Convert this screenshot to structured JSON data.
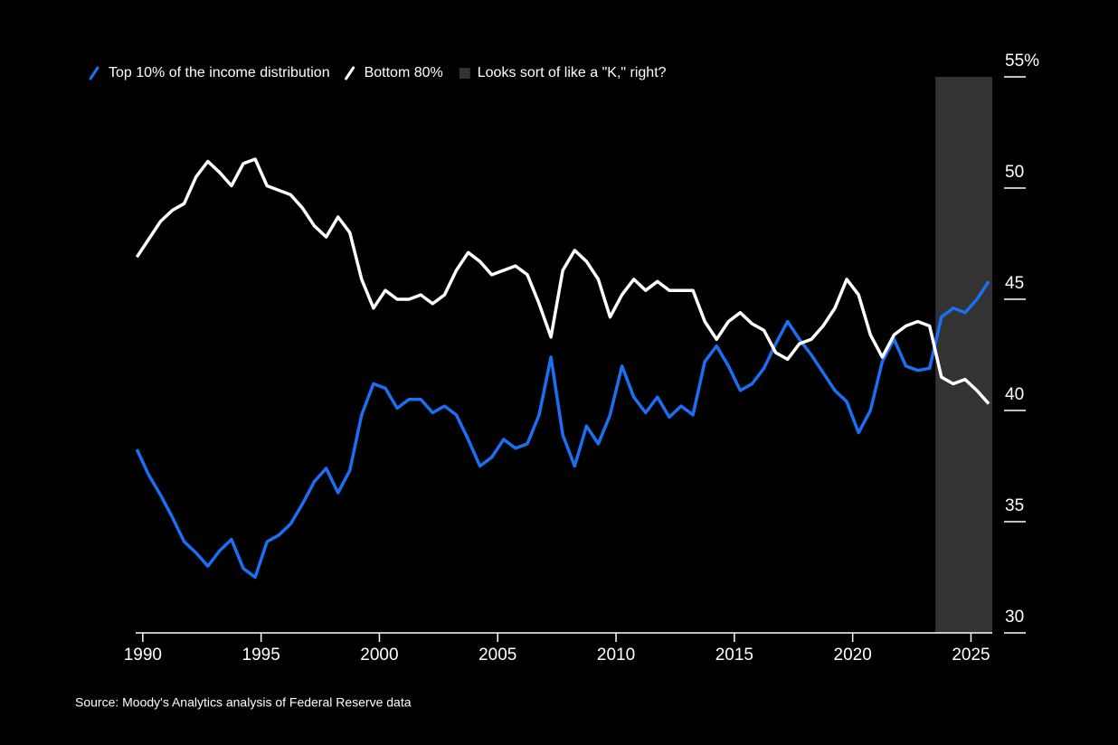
{
  "chart_data": {
    "type": "line",
    "source": "Source: Moody's Analytics analysis of Federal Reserve data",
    "x": [
      1989.75,
      1990.25,
      1990.75,
      1991.25,
      1991.75,
      1992.25,
      1992.75,
      1993.25,
      1993.75,
      1994.25,
      1994.75,
      1995.25,
      1995.75,
      1996.25,
      1996.75,
      1997.25,
      1997.75,
      1998.25,
      1998.75,
      1999.25,
      1999.75,
      2000.25,
      2000.75,
      2001.25,
      2001.75,
      2002.25,
      2002.75,
      2003.25,
      2003.75,
      2004.25,
      2004.75,
      2005.25,
      2005.75,
      2006.25,
      2006.75,
      2007.25,
      2007.75,
      2008.25,
      2008.75,
      2009.25,
      2009.75,
      2010.25,
      2010.75,
      2011.25,
      2011.75,
      2012.25,
      2012.75,
      2013.25,
      2013.75,
      2014.25,
      2014.75,
      2015.25,
      2015.75,
      2016.25,
      2016.75,
      2017.25,
      2017.75,
      2018.25,
      2018.75,
      2019.25,
      2019.75,
      2020.25,
      2020.75,
      2021.25,
      2021.75,
      2022.25,
      2022.75,
      2023.25,
      2023.75,
      2024.25,
      2024.75,
      2025.25,
      2025.75
    ],
    "series": [
      {
        "name": "Top 10% of the income distribution",
        "color": "#1a6ff2",
        "values": [
          38.25,
          37.1,
          36.2,
          35.2,
          34.1,
          33.6,
          33.0,
          33.7,
          34.2,
          32.9,
          32.5,
          34.1,
          34.4,
          34.9,
          35.8,
          36.8,
          37.4,
          36.3,
          37.3,
          39.8,
          41.2,
          41.0,
          40.1,
          40.5,
          40.5,
          39.9,
          40.2,
          39.8,
          38.7,
          37.5,
          37.9,
          38.7,
          38.3,
          38.5,
          39.8,
          42.4,
          38.9,
          37.5,
          39.3,
          38.5,
          39.8,
          42.0,
          40.6,
          39.9,
          40.6,
          39.7,
          40.2,
          39.8,
          42.2,
          42.9,
          42.0,
          40.9,
          41.2,
          41.9,
          43.0,
          44.0,
          43.2,
          42.5,
          41.7,
          40.9,
          40.4,
          39.0,
          40.0,
          42.2,
          43.2,
          42.0,
          41.8,
          41.9,
          44.2,
          44.6,
          44.4,
          45.0,
          45.8
        ]
      },
      {
        "name": "Bottom 80%",
        "color": "#ffffff",
        "values": [
          46.9,
          47.7,
          48.5,
          49.0,
          49.3,
          50.5,
          51.2,
          50.7,
          50.1,
          51.1,
          51.3,
          50.1,
          49.9,
          49.7,
          49.1,
          48.3,
          47.8,
          48.7,
          48.0,
          45.9,
          44.6,
          45.4,
          45.0,
          45.0,
          45.2,
          44.8,
          45.2,
          46.3,
          47.1,
          46.7,
          46.1,
          46.3,
          46.5,
          46.1,
          44.8,
          43.3,
          46.3,
          47.2,
          46.7,
          45.9,
          44.2,
          45.2,
          45.9,
          45.4,
          45.8,
          45.4,
          45.4,
          45.4,
          44.0,
          43.2,
          44.0,
          44.4,
          43.9,
          43.6,
          42.6,
          42.3,
          43.0,
          43.2,
          43.8,
          44.6,
          45.9,
          45.2,
          43.4,
          42.4,
          43.4,
          43.8,
          44.0,
          43.8,
          41.5,
          41.2,
          41.4,
          40.9,
          40.3
        ]
      }
    ],
    "shade": {
      "start": 2023.5,
      "end": 2025.9,
      "label": "Looks sort of like a \"K,\" right?",
      "color": "#333333"
    },
    "xlim": [
      1989.7,
      2025.9
    ],
    "xticks": [
      1990,
      1995,
      2000,
      2005,
      2010,
      2015,
      2020,
      2025
    ],
    "ylim": [
      30,
      55
    ],
    "yticks": [
      30,
      35,
      40,
      45,
      50,
      {
        "value": 55,
        "label": "55%"
      }
    ],
    "grid": false
  }
}
